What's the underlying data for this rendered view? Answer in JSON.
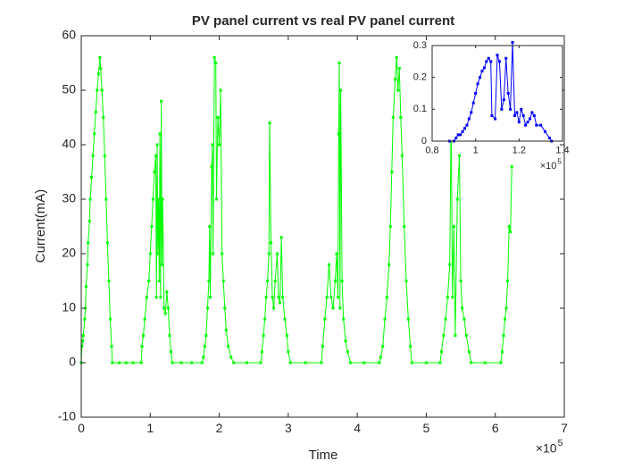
{
  "chart_data": [
    {
      "type": "line",
      "title": "PV panel current vs real PV panel current",
      "x_label": "Time",
      "y_label": "Current(mA)",
      "x_multiplier": "×10",
      "x_multiplier_exponent": "5",
      "xlim": [
        0,
        7
      ],
      "xticks": [
        0,
        1,
        2,
        3,
        4,
        5,
        6,
        7
      ],
      "ylim": [
        -10,
        60
      ],
      "yticks": [
        -10,
        0,
        10,
        20,
        30,
        40,
        50,
        60
      ],
      "x": [
        0,
        0.01,
        0.02,
        0.03,
        0.05,
        0.06,
        0.07,
        0.09,
        0.1,
        0.12,
        0.13,
        0.15,
        0.17,
        0.19,
        0.21,
        0.23,
        0.25,
        0.27,
        0.28,
        0.3,
        0.32,
        0.34,
        0.36,
        0.38,
        0.4,
        0.42,
        0.44,
        0.45,
        0.55,
        0.65,
        0.75,
        0.87,
        0.88,
        0.9,
        0.92,
        0.95,
        0.98,
        1.0,
        1.02,
        1.04,
        1.06,
        1.08,
        1.09,
        1.1,
        1.11,
        1.12,
        1.13,
        1.14,
        1.15,
        1.16,
        1.17,
        1.18,
        1.2,
        1.22,
        1.24,
        1.26,
        1.28,
        1.3,
        1.32,
        1.45,
        1.6,
        1.75,
        1.77,
        1.79,
        1.81,
        1.83,
        1.85,
        1.86,
        1.87,
        1.89,
        1.9,
        1.91,
        1.93,
        1.95,
        1.96,
        1.98,
        2.0,
        2.02,
        2.04,
        2.06,
        2.08,
        2.1,
        2.13,
        2.17,
        2.21,
        2.4,
        2.6,
        2.62,
        2.64,
        2.66,
        2.68,
        2.7,
        2.72,
        2.73,
        2.75,
        2.77,
        2.79,
        2.81,
        2.84,
        2.86,
        2.88,
        2.9,
        2.92,
        2.95,
        2.98,
        3.0,
        3.03,
        3.25,
        3.48,
        3.5,
        3.53,
        3.56,
        3.59,
        3.62,
        3.65,
        3.68,
        3.7,
        3.72,
        3.73,
        3.74,
        3.75,
        3.76,
        3.78,
        3.8,
        3.83,
        3.86,
        3.9,
        4.1,
        4.32,
        4.34,
        4.37,
        4.4,
        4.43,
        4.46,
        4.48,
        4.5,
        4.52,
        4.55,
        4.57,
        4.59,
        4.61,
        4.63,
        4.65,
        4.68,
        4.71,
        4.74,
        4.77,
        4.79,
        5.0,
        5.2,
        5.22,
        5.25,
        5.28,
        5.31,
        5.34,
        5.36,
        5.38,
        5.4,
        5.42,
        5.45,
        5.48,
        5.5,
        5.52,
        5.55,
        5.58,
        5.62,
        5.65,
        5.85,
        6.08,
        6.1,
        6.12,
        6.14,
        6.16,
        6.18,
        6.2,
        6.22,
        6.24
      ],
      "series": [
        {
          "color": "#00ff00",
          "values": [
            0,
            3,
            4,
            5,
            8,
            10,
            14,
            18,
            22,
            26,
            30,
            34,
            38,
            42,
            46,
            50,
            53,
            56,
            54,
            50,
            45,
            38,
            30,
            22,
            15,
            8,
            3,
            0,
            0,
            0,
            0,
            0,
            3,
            5,
            8,
            12,
            15,
            20,
            25,
            30,
            35,
            38,
            12,
            40,
            20,
            30,
            15,
            42,
            12,
            48,
            18,
            30,
            10,
            9,
            13,
            10,
            5,
            2,
            0,
            0,
            0,
            0,
            1,
            3,
            5,
            10,
            15,
            25,
            12,
            36,
            40,
            20,
            56,
            55,
            30,
            45,
            40,
            50,
            20,
            15,
            10,
            6,
            3,
            1,
            0,
            0,
            0,
            2,
            5,
            8,
            12,
            15,
            20,
            44,
            22,
            12,
            10,
            15,
            20,
            12,
            11,
            23,
            12,
            8,
            5,
            2,
            0,
            0,
            0,
            3,
            8,
            12,
            18,
            12,
            10,
            15,
            20,
            12,
            42,
            55,
            10,
            50,
            15,
            8,
            4,
            2,
            0,
            0,
            0,
            1,
            3,
            8,
            12,
            18,
            25,
            35,
            45,
            52,
            56,
            50,
            54,
            45,
            38,
            25,
            15,
            8,
            3,
            0,
            0,
            0,
            2,
            5,
            8,
            12,
            18,
            45,
            12,
            25,
            5,
            30,
            38,
            15,
            10,
            8,
            5,
            2,
            0,
            0,
            0,
            2,
            5,
            8,
            10,
            15,
            25,
            24,
            36
          ]
        }
      ]
    },
    {
      "type": "line",
      "x_multiplier": "×10",
      "x_multiplier_exponent": "5",
      "xlim": [
        0.8,
        1.4
      ],
      "xticks": [
        0.8,
        1,
        1.2,
        1.4
      ],
      "ylim": [
        0,
        0.3
      ],
      "yticks": [
        0,
        0.1,
        0.2,
        0.3
      ],
      "x": [
        0.88,
        0.9,
        0.91,
        0.92,
        0.93,
        0.94,
        0.95,
        0.96,
        0.97,
        0.98,
        0.99,
        1.0,
        1.01,
        1.02,
        1.03,
        1.04,
        1.05,
        1.06,
        1.07,
        1.075,
        1.09,
        1.1,
        1.11,
        1.12,
        1.13,
        1.14,
        1.15,
        1.16,
        1.17,
        1.18,
        1.19,
        1.2,
        1.21,
        1.22,
        1.23,
        1.24,
        1.25,
        1.26,
        1.27,
        1.28,
        1.3,
        1.32,
        1.34,
        1.35
      ],
      "series": [
        {
          "color": "#0000ff",
          "values": [
            0,
            0,
            0.01,
            0.02,
            0.02,
            0.03,
            0.04,
            0.05,
            0.07,
            0.09,
            0.12,
            0.15,
            0.18,
            0.2,
            0.22,
            0.23,
            0.25,
            0.26,
            0.25,
            0.08,
            0.07,
            0.27,
            0.25,
            0.1,
            0.13,
            0.26,
            0.15,
            0.1,
            0.31,
            0.08,
            0.09,
            0.06,
            0.1,
            0.08,
            0.05,
            0.06,
            0.07,
            0.09,
            0.08,
            0.05,
            0.05,
            0.03,
            0.01,
            0
          ]
        }
      ]
    }
  ]
}
